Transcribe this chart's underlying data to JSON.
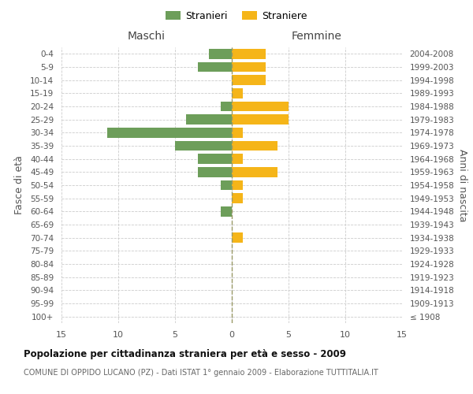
{
  "age_groups": [
    "100+",
    "95-99",
    "90-94",
    "85-89",
    "80-84",
    "75-79",
    "70-74",
    "65-69",
    "60-64",
    "55-59",
    "50-54",
    "45-49",
    "40-44",
    "35-39",
    "30-34",
    "25-29",
    "20-24",
    "15-19",
    "10-14",
    "5-9",
    "0-4"
  ],
  "birth_years": [
    "≤ 1908",
    "1909-1913",
    "1914-1918",
    "1919-1923",
    "1924-1928",
    "1929-1933",
    "1934-1938",
    "1939-1943",
    "1944-1948",
    "1949-1953",
    "1954-1958",
    "1959-1963",
    "1964-1968",
    "1969-1973",
    "1974-1978",
    "1979-1983",
    "1984-1988",
    "1989-1993",
    "1994-1998",
    "1999-2003",
    "2004-2008"
  ],
  "males": [
    0,
    0,
    0,
    0,
    0,
    0,
    0,
    0,
    1,
    0,
    1,
    3,
    3,
    5,
    11,
    4,
    1,
    0,
    0,
    3,
    2
  ],
  "females": [
    0,
    0,
    0,
    0,
    0,
    0,
    1,
    0,
    0,
    1,
    1,
    4,
    1,
    4,
    1,
    5,
    5,
    1,
    3,
    3,
    3
  ],
  "male_color": "#6d9e5a",
  "female_color": "#f5b519",
  "title": "Popolazione per cittadinanza straniera per età e sesso - 2009",
  "subtitle": "COMUNE DI OPPIDO LUCANO (PZ) - Dati ISTAT 1° gennaio 2009 - Elaborazione TUTTITALIA.IT",
  "ylabel_left": "Fasce di età",
  "ylabel_right": "Anni di nascita",
  "xlabel_maschi": "Maschi",
  "xlabel_femmine": "Femmine",
  "legend_males": "Stranieri",
  "legend_females": "Straniere",
  "xlim": 15,
  "background_color": "#ffffff",
  "grid_color": "#cccccc"
}
